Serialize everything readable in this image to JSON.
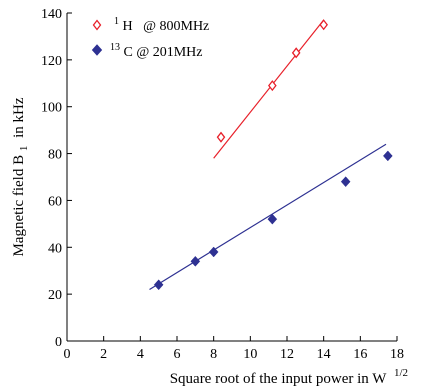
{
  "chart_data": {
    "type": "scatter",
    "xlabel": "Square root of the input power in W",
    "xlabel_sup": "1/2",
    "ylabel": "Magnetic field B",
    "ylabel_sub": "1",
    "ylabel_unit": "in kHz",
    "xlim": [
      0,
      18
    ],
    "ylim": [
      0,
      140
    ],
    "xticks": [
      0,
      2,
      4,
      6,
      8,
      10,
      12,
      14,
      16,
      18
    ],
    "yticks": [
      0,
      20,
      40,
      60,
      80,
      100,
      120,
      140
    ],
    "grid": false,
    "legend_position": "top-left",
    "series": [
      {
        "key": "h1",
        "legend_sup": "1",
        "legend_rest": "H   @ 800MHz",
        "color": "#e8202a",
        "marker": "hollow-diamond",
        "x": [
          8.4,
          11.2,
          12.5,
          14.0
        ],
        "y": [
          87,
          109,
          123,
          135
        ],
        "fit": {
          "x": [
            8.0,
            14.0
          ],
          "y": [
            78,
            137
          ]
        }
      },
      {
        "key": "c13",
        "legend_sup": "13",
        "legend_rest": "C @ 201MHz",
        "color": "#2e3192",
        "marker": "filled-diamond",
        "x": [
          5.0,
          7.0,
          8.0,
          11.2,
          15.2,
          17.5
        ],
        "y": [
          24,
          34,
          38,
          52,
          68,
          79
        ],
        "fit": {
          "x": [
            4.5,
            17.4
          ],
          "y": [
            22,
            84
          ]
        }
      }
    ]
  }
}
